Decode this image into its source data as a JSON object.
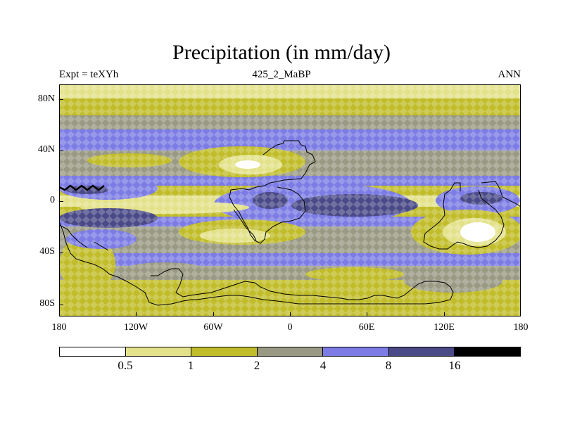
{
  "title": "Precipitation (in mm/day)",
  "subtitle_left": "Expt = teXYh",
  "subtitle_center": "425_2_MaBP",
  "subtitle_right": "ANN",
  "lat_ticks": [
    "80N",
    "40N",
    "0",
    "40S",
    "80S"
  ],
  "lon_ticks": [
    "180",
    "120W",
    "60W",
    "0",
    "60E",
    "120E",
    "180"
  ],
  "colorbar": {
    "labels": [
      "0.5",
      "1",
      "2",
      "4",
      "8",
      "16"
    ],
    "colors": [
      "#ffffff",
      "#e3e28a",
      "#c1bd2a",
      "#9a9a84",
      "#7c7ce4",
      "#4a4a88",
      "#000000"
    ]
  }
}
